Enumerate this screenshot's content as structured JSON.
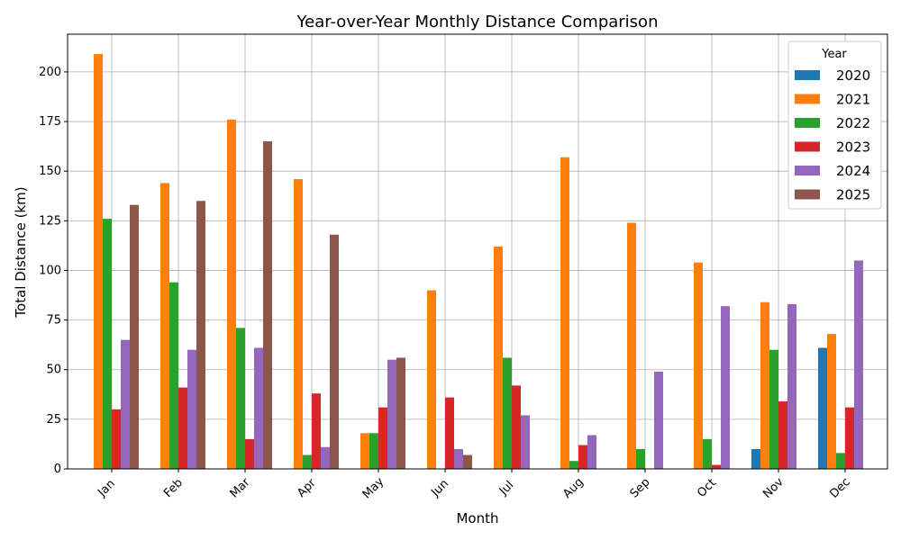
{
  "chart_data": {
    "type": "bar",
    "title": "Year-over-Year Monthly Distance Comparison",
    "xlabel": "Month",
    "ylabel": "Total Distance (km)",
    "ylim": [
      0,
      219
    ],
    "yticks": [
      0,
      25,
      50,
      75,
      100,
      125,
      150,
      175,
      200
    ],
    "grid": true,
    "legend": {
      "title": "Year",
      "placement": "top-right"
    },
    "categories": [
      "Jan",
      "Feb",
      "Mar",
      "Apr",
      "May",
      "Jun",
      "Jul",
      "Aug",
      "Sep",
      "Oct",
      "Nov",
      "Dec"
    ],
    "series": [
      {
        "name": "2020",
        "color": "#1f77b4",
        "values": [
          0,
          0,
          0,
          0,
          0,
          0,
          0,
          0,
          0,
          0,
          10,
          61
        ]
      },
      {
        "name": "2021",
        "color": "#ff7f0e",
        "values": [
          209,
          144,
          176,
          146,
          18,
          90,
          112,
          157,
          124,
          104,
          84,
          68
        ]
      },
      {
        "name": "2022",
        "color": "#2ca02c",
        "values": [
          126,
          94,
          71,
          7,
          18,
          0,
          56,
          4,
          10,
          15,
          60,
          8
        ]
      },
      {
        "name": "2023",
        "color": "#d62728",
        "values": [
          30,
          41,
          15,
          38,
          31,
          36,
          42,
          12,
          0,
          2,
          34,
          31
        ]
      },
      {
        "name": "2024",
        "color": "#9467bd",
        "values": [
          65,
          60,
          61,
          11,
          55,
          10,
          27,
          17,
          49,
          82,
          83,
          105
        ]
      },
      {
        "name": "2025",
        "color": "#8c564b",
        "values": [
          133,
          135,
          165,
          118,
          56,
          7,
          0,
          0,
          0,
          0,
          0,
          0
        ]
      }
    ]
  }
}
